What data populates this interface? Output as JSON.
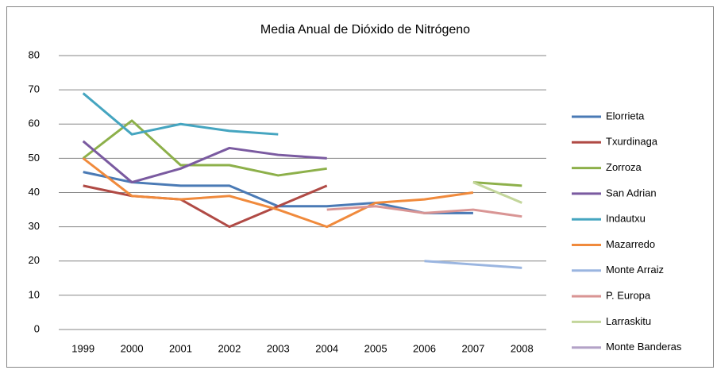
{
  "chart_data": {
    "type": "line",
    "title": "Media Anual de Dióxido de Nitrógeno",
    "categories": [
      "1999",
      "2000",
      "2001",
      "2002",
      "2003",
      "2004",
      "2005",
      "2006",
      "2007",
      "2008"
    ],
    "ylim": [
      0,
      80
    ],
    "yticks": [
      0,
      10,
      20,
      30,
      40,
      50,
      60,
      70,
      80
    ],
    "grid": true,
    "legend": "right",
    "series": [
      {
        "name": "Elorrieta",
        "color": "#4a7ab5",
        "values": [
          46,
          43,
          42,
          42,
          36,
          36,
          37,
          34,
          34,
          null
        ]
      },
      {
        "name": "Txurdinaga",
        "color": "#b04a45",
        "values": [
          42,
          39,
          38,
          30,
          36,
          42,
          null,
          null,
          null,
          null
        ]
      },
      {
        "name": "Zorroza",
        "color": "#8db04a",
        "values": [
          50,
          61,
          48,
          48,
          45,
          47,
          null,
          null,
          43,
          42
        ]
      },
      {
        "name": "San Adrian",
        "color": "#7a5aa0",
        "values": [
          55,
          43,
          47,
          53,
          51,
          50,
          null,
          null,
          null,
          null
        ]
      },
      {
        "name": "Indautxu",
        "color": "#45a5c0",
        "values": [
          69,
          57,
          60,
          58,
          57,
          null,
          null,
          null,
          null,
          null
        ]
      },
      {
        "name": "Mazarredo",
        "color": "#f08a3c",
        "values": [
          50,
          39,
          38,
          39,
          35,
          30,
          37,
          38,
          40,
          null
        ]
      },
      {
        "name": "Monte Arraiz",
        "color": "#9ab5e0",
        "values": [
          null,
          null,
          null,
          null,
          null,
          null,
          null,
          20,
          19,
          18
        ]
      },
      {
        "name": "P. Europa",
        "color": "#d99594",
        "values": [
          null,
          null,
          null,
          null,
          null,
          35,
          36,
          34,
          35,
          33
        ]
      },
      {
        "name": "Larraskitu",
        "color": "#c3d69b",
        "values": [
          null,
          null,
          null,
          null,
          null,
          null,
          null,
          null,
          43,
          37
        ]
      },
      {
        "name": "Monte Banderas",
        "color": "#b3a2c7",
        "values": [
          null,
          null,
          null,
          null,
          null,
          null,
          null,
          null,
          null,
          null
        ]
      }
    ]
  }
}
